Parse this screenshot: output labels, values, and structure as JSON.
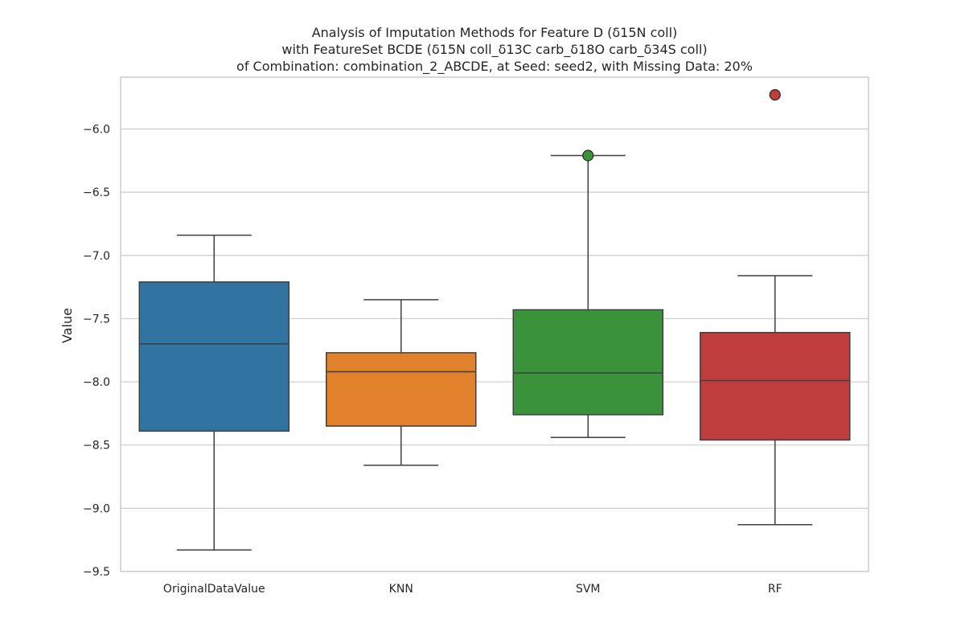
{
  "chart_data": {
    "type": "box",
    "title_lines": [
      "Analysis of Imputation Methods for Feature D (δ15N coll)",
      "with FeatureSet BCDE (δ15N coll_δ13C carb_δ18O carb_δ34S coll)",
      "of Combination: combination_2_ABCDE, at Seed: seed2, with Missing Data: 20%"
    ],
    "xlabel": "",
    "ylabel": "Value",
    "ylim": [
      -9.5,
      -5.59
    ],
    "yticks": [
      -6.0,
      -6.5,
      -7.0,
      -7.5,
      -8.0,
      -8.5,
      -9.0,
      -9.5
    ],
    "ytick_labels": [
      "−6.0",
      "−6.5",
      "−7.0",
      "−7.5",
      "−8.0",
      "−8.5",
      "−9.0",
      "−9.5"
    ],
    "grid": true,
    "categories": [
      "OriginalDataValue",
      "KNN",
      "SVM",
      "RF"
    ],
    "boxes": [
      {
        "category": "OriginalDataValue",
        "color": "#3274a1",
        "whisker_low": -9.33,
        "q1": -8.39,
        "median": -7.7,
        "q3": -7.21,
        "whisker_high": -6.84,
        "outliers": []
      },
      {
        "category": "KNN",
        "color": "#e1812c",
        "whisker_low": -8.66,
        "q1": -8.35,
        "median": -7.92,
        "q3": -7.77,
        "whisker_high": -7.35,
        "outliers": []
      },
      {
        "category": "SVM",
        "color": "#3a923a",
        "whisker_low": -8.44,
        "q1": -8.26,
        "median": -7.93,
        "q3": -7.43,
        "whisker_high": -6.21,
        "outliers": [
          -6.21
        ]
      },
      {
        "category": "RF",
        "color": "#c03d3e",
        "whisker_low": -9.13,
        "q1": -8.46,
        "median": -7.99,
        "q3": -7.61,
        "whisker_high": -7.16,
        "outliers": [
          -5.73
        ]
      }
    ]
  }
}
